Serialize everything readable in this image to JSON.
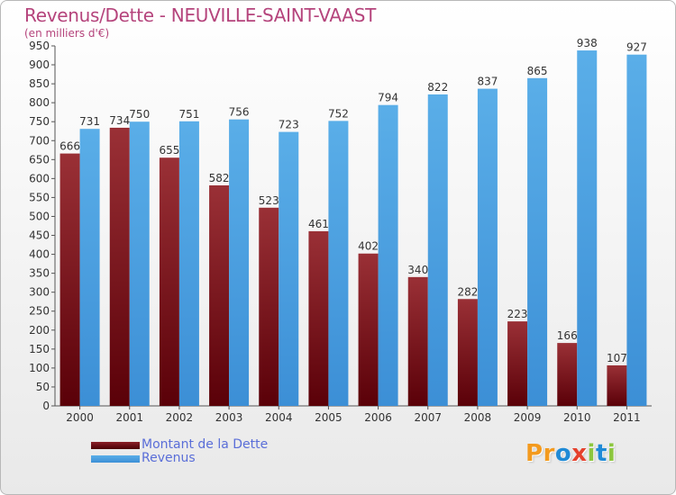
{
  "title": "Revenus/Dette - NEUVILLE-SAINT-VAAST",
  "subtitle": "(en milliers d'€)",
  "colors": {
    "title": "#b5447c",
    "dette": "#7a1a20",
    "revenus": "#4a9fe0",
    "legend_text": "#5a6ed8"
  },
  "legend": [
    {
      "label": "Montant de la Dette",
      "color": "#6a0a0e"
    },
    {
      "label": "Revenus",
      "color": "#4a9fe0"
    }
  ],
  "logo": {
    "letters": [
      "P",
      "r",
      "o",
      "x",
      "i",
      "t",
      "i"
    ],
    "colors": [
      "#f39a1e",
      "#f39a1e",
      "#1f8ad6",
      "#e5412d",
      "#8cc63e",
      "#1f8ad6",
      "#8cc63e"
    ]
  },
  "chart_data": {
    "type": "bar",
    "categories": [
      "2000",
      "2001",
      "2002",
      "2003",
      "2004",
      "2005",
      "2006",
      "2007",
      "2008",
      "2009",
      "2010",
      "2011"
    ],
    "series": [
      {
        "name": "Montant de la Dette",
        "values": [
          666,
          734,
          655,
          582,
          523,
          461,
          402,
          340,
          282,
          223,
          166,
          107
        ]
      },
      {
        "name": "Revenus",
        "values": [
          731,
          750,
          751,
          756,
          723,
          752,
          794,
          822,
          837,
          865,
          938,
          927
        ]
      }
    ],
    "ylim": [
      0,
      950
    ],
    "ytick_step": 50,
    "grid": false,
    "legend_position": "bottom-left"
  }
}
